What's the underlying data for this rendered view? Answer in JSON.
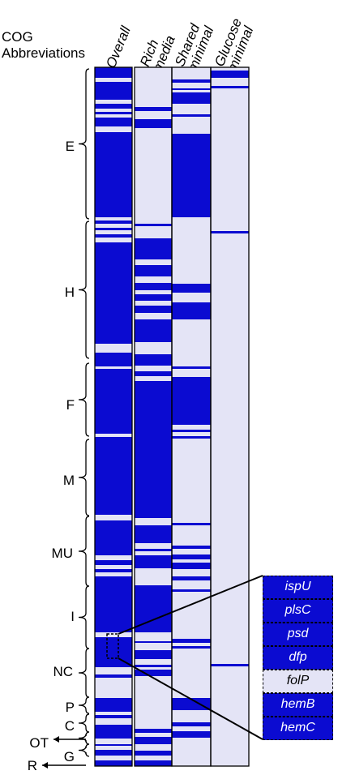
{
  "heading": [
    "COG",
    "Abbreviations"
  ],
  "columns": [
    "Overall",
    "Rich\nmedia",
    "Shared\nminimal",
    "Glucose\nminimal"
  ],
  "cog_groups": [
    "E",
    "H",
    "F",
    "M",
    "MU",
    "I",
    "NC",
    "P",
    "C",
    "OT",
    "G",
    "R"
  ],
  "genes": [
    {
      "name": "ispU",
      "highlighted": false
    },
    {
      "name": "plsC",
      "highlighted": false
    },
    {
      "name": "psd",
      "highlighted": false
    },
    {
      "name": "dfp",
      "highlighted": false
    },
    {
      "name": "folP",
      "highlighted": true
    },
    {
      "name": "hemB",
      "highlighted": false
    },
    {
      "name": "hemC",
      "highlighted": false
    }
  ],
  "colors": {
    "present": "#0b0bd1",
    "absent": "#e4e4f6",
    "border": "#000000"
  }
}
